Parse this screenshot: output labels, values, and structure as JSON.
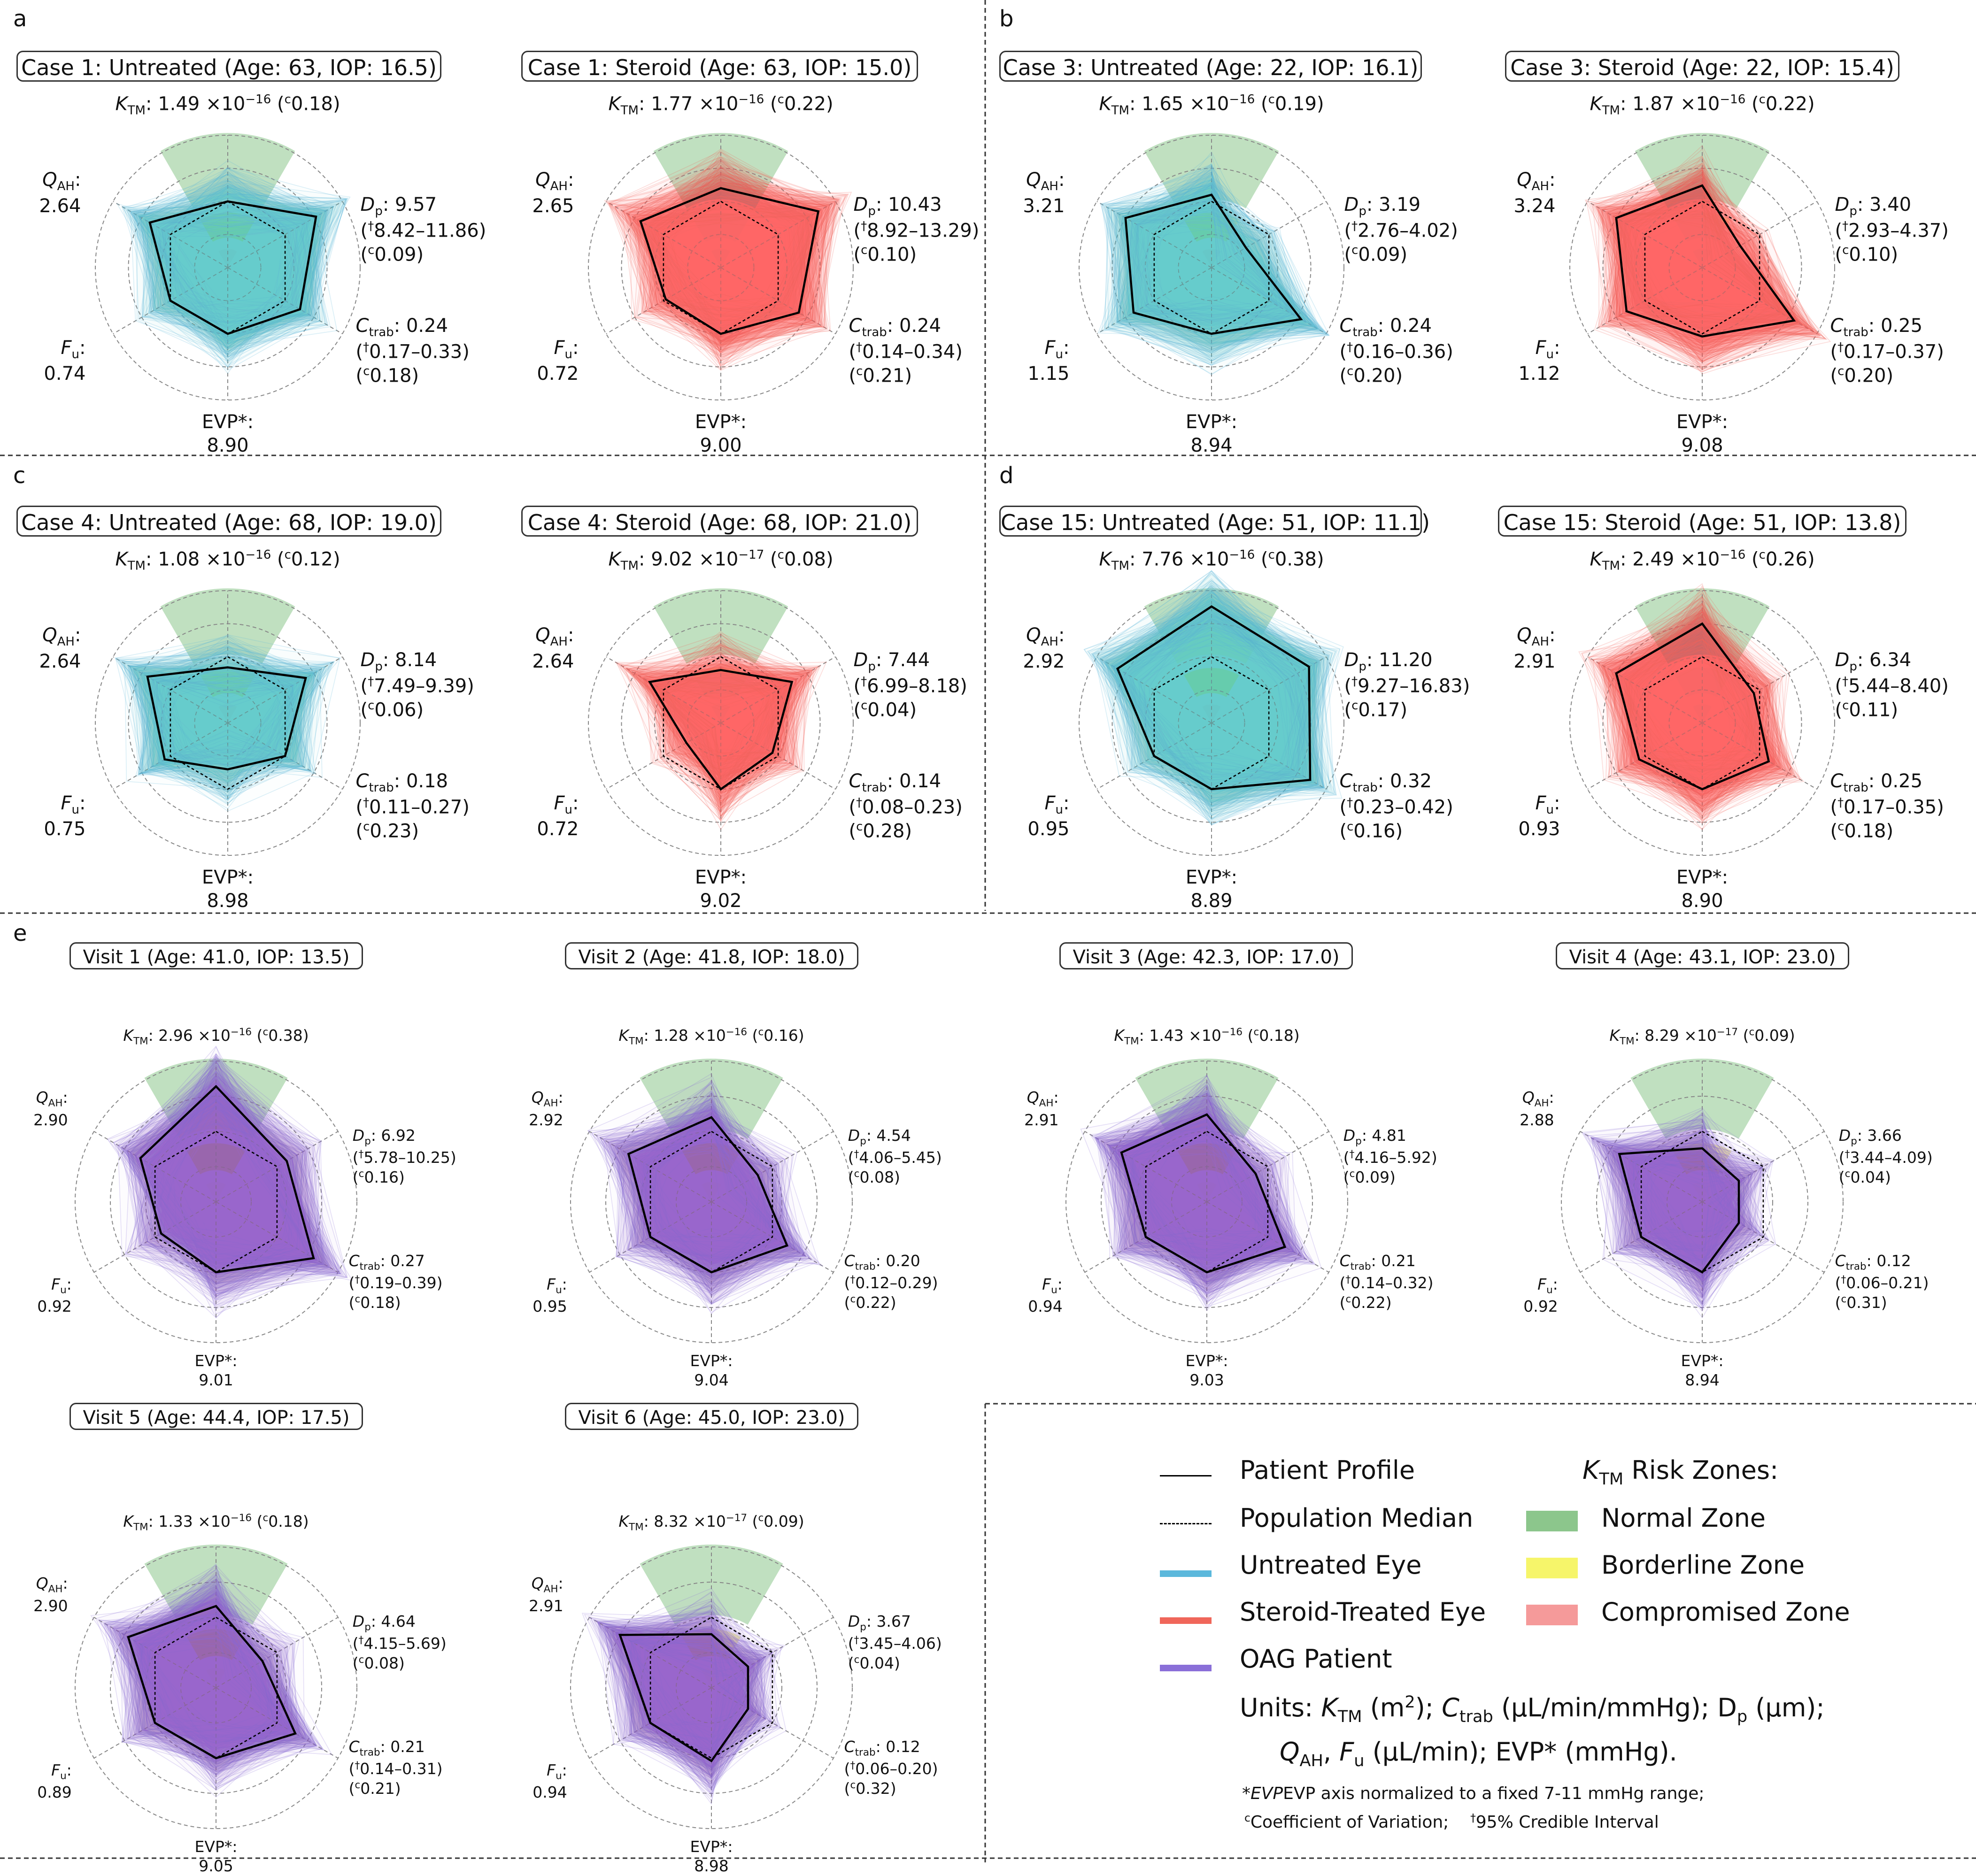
{
  "panels": [
    {
      "id": "a-1",
      "letter": "a",
      "title": "Case 1: Untreated (Age: 63, IOP: 16.5)",
      "group": "untreated",
      "k": "1.49",
      "kexp": "−16",
      "kcv": "0.18",
      "dp": "9.57",
      "dpci": "8.42–11.86",
      "dpcv": "0.09",
      "ctrab": "0.24",
      "ctrabci": "0.17–0.33",
      "ctrabcv": "0.18",
      "evp": "8.90",
      "fu": "0.74",
      "qah": "2.64",
      "patient": [
        0.5,
        0.77,
        0.63,
        0.5,
        0.5,
        0.68
      ]
    },
    {
      "id": "a-2",
      "letter": "",
      "title": "Case 1: Steroid (Age: 63, IOP: 15.0)",
      "group": "steroid",
      "k": "1.77",
      "kexp": "−16",
      "kcv": "0.22",
      "dp": "10.43",
      "dpci": "8.92–13.29",
      "dpcv": "0.10",
      "ctrab": "0.24",
      "ctrabci": "0.14–0.34",
      "ctrabcv": "0.21",
      "evp": "9.00",
      "fu": "0.72",
      "qah": "2.65",
      "patient": [
        0.6,
        0.85,
        0.68,
        0.5,
        0.48,
        0.7
      ]
    },
    {
      "id": "b-1",
      "letter": "b",
      "title": "Case 3: Untreated (Age: 22, IOP: 16.1)",
      "group": "untreated",
      "k": "1.65",
      "kexp": "−16",
      "kcv": "0.19",
      "dp": "3.19",
      "dpci": "2.76–4.02",
      "dpcv": "0.09",
      "ctrab": "0.24",
      "ctrabci": "0.16–0.36",
      "ctrabcv": "0.20",
      "evp": "8.94",
      "fu": "1.15",
      "qah": "3.21",
      "patient": [
        0.55,
        0.3,
        0.78,
        0.5,
        0.68,
        0.75
      ]
    },
    {
      "id": "b-2",
      "letter": "",
      "title": "Case 3: Steroid (Age: 22, IOP: 15.4)",
      "group": "steroid",
      "k": "1.87",
      "kexp": "−16",
      "kcv": "0.22",
      "dp": "3.40",
      "dpci": "2.93–4.37",
      "dpcv": "0.10",
      "ctrab": "0.25",
      "ctrabci": "0.17–0.37",
      "ctrabcv": "0.20",
      "evp": "9.08",
      "fu": "1.12",
      "qah": "3.24",
      "patient": [
        0.62,
        0.33,
        0.8,
        0.52,
        0.66,
        0.75
      ]
    },
    {
      "id": "c-1",
      "letter": "c",
      "title": "Case 4: Untreated (Age: 68, IOP: 19.0)",
      "group": "untreated",
      "k": "1.08",
      "kexp": "−16",
      "kcv": "0.12",
      "dp": "8.14",
      "dpci": "7.49–9.39",
      "dpcv": "0.06",
      "ctrab": "0.18",
      "ctrabci": "0.11–0.27",
      "ctrabcv": "0.23",
      "evp": "8.98",
      "fu": "0.75",
      "qah": "2.64",
      "patient": [
        0.42,
        0.68,
        0.5,
        0.35,
        0.55,
        0.7
      ]
    },
    {
      "id": "c-2",
      "letter": "",
      "title": "Case 4: Steroid (Age: 68, IOP: 21.0)",
      "group": "steroid",
      "k": "9.02",
      "kexp": "−17",
      "kcv": "0.08",
      "dp": "7.44",
      "dpci": "6.99–8.18",
      "dpcv": "0.04",
      "ctrab": "0.14",
      "ctrabci": "0.08–0.23",
      "ctrabcv": "0.28",
      "evp": "9.02",
      "fu": "0.72",
      "qah": "2.64",
      "patient": [
        0.4,
        0.62,
        0.45,
        0.5,
        0.3,
        0.62
      ]
    },
    {
      "id": "d-1",
      "letter": "d",
      "title": "Case 15: Untreated (Age: 51, IOP: 11.1)",
      "group": "untreated",
      "k": "7.76",
      "kexp": "−16",
      "kcv": "0.38",
      "dp": "11.20",
      "dpci": "9.27–16.83",
      "dpcv": "0.17",
      "ctrab": "0.32",
      "ctrabci": "0.23–0.42",
      "ctrabcv": "0.16",
      "evp": "8.89",
      "fu": "0.95",
      "qah": "2.92",
      "patient": [
        0.88,
        0.85,
        0.86,
        0.5,
        0.5,
        0.82
      ]
    },
    {
      "id": "d-2",
      "letter": "",
      "title": "Case 15: Steroid (Age: 51, IOP: 13.8)",
      "group": "steroid",
      "k": "2.49",
      "kexp": "−16",
      "kcv": "0.26",
      "dp": "6.34",
      "dpci": "5.44–8.40",
      "dpcv": "0.11",
      "ctrab": "0.25",
      "ctrabci": "0.17–0.35",
      "ctrabcv": "0.18",
      "evp": "8.90",
      "fu": "0.93",
      "qah": "2.91",
      "patient": [
        0.75,
        0.45,
        0.58,
        0.5,
        0.55,
        0.75
      ]
    },
    {
      "id": "e-1",
      "letter": "e",
      "title": "Visit 1 (Age: 41.0, IOP: 13.5)",
      "group": "oag",
      "k": "2.96",
      "kexp": "−16",
      "kcv": "0.38",
      "dp": "6.92",
      "dpci": "5.78–10.25",
      "dpcv": "0.16",
      "ctrab": "0.27",
      "ctrabci": "0.19–0.39",
      "ctrabcv": "0.18",
      "evp": "9.01",
      "fu": "0.92",
      "qah": "2.90",
      "patient": [
        0.82,
        0.58,
        0.8,
        0.5,
        0.45,
        0.62
      ]
    },
    {
      "id": "e-2",
      "letter": "",
      "title": "Visit 2 (Age: 41.8, IOP: 18.0)",
      "group": "oag",
      "k": "1.28",
      "kexp": "−16",
      "kcv": "0.16",
      "dp": "4.54",
      "dpci": "4.06–5.45",
      "dpcv": "0.08",
      "ctrab": "0.20",
      "ctrabci": "0.12–0.29",
      "ctrabcv": "0.22",
      "evp": "9.04",
      "fu": "0.95",
      "qah": "2.92",
      "patient": [
        0.6,
        0.38,
        0.62,
        0.5,
        0.5,
        0.68
      ]
    },
    {
      "id": "e-3",
      "letter": "",
      "title": "Visit 3 (Age: 42.3, IOP: 17.0)",
      "group": "oag",
      "k": "1.43",
      "kexp": "−16",
      "kcv": "0.18",
      "dp": "4.81",
      "dpci": "4.16–5.92",
      "dpcv": "0.09",
      "ctrab": "0.21",
      "ctrabci": "0.14–0.32",
      "ctrabcv": "0.22",
      "evp": "9.03",
      "fu": "0.94",
      "qah": "2.91",
      "patient": [
        0.62,
        0.4,
        0.64,
        0.5,
        0.5,
        0.7
      ]
    },
    {
      "id": "e-4",
      "letter": "",
      "title": "Visit 4 (Age: 43.1, IOP: 23.0)",
      "group": "oag",
      "k": "8.29",
      "kexp": "−17",
      "kcv": "0.09",
      "dp": "3.66",
      "dpci": "3.44–4.09",
      "dpcv": "0.04",
      "ctrab": "0.12",
      "ctrabci": "0.06–0.21",
      "ctrabcv": "0.31",
      "evp": "8.94",
      "fu": "0.92",
      "qah": "2.88",
      "patient": [
        0.38,
        0.3,
        0.3,
        0.5,
        0.5,
        0.68
      ]
    },
    {
      "id": "e-5",
      "letter": "",
      "title": "Visit 5 (Age: 44.4, IOP: 17.5)",
      "group": "oag",
      "k": "1.33",
      "kexp": "−16",
      "kcv": "0.18",
      "dp": "4.64",
      "dpci": "4.15–5.69",
      "dpcv": "0.08",
      "ctrab": "0.21",
      "ctrabci": "0.14–0.31",
      "ctrabcv": "0.21",
      "evp": "9.05",
      "fu": "0.89",
      "qah": "2.90",
      "patient": [
        0.58,
        0.38,
        0.65,
        0.5,
        0.5,
        0.72
      ]
    },
    {
      "id": "e-6",
      "letter": "",
      "title": "Visit 6 (Age: 45.0, IOP: 23.0)",
      "group": "oag",
      "k": "8.32",
      "kexp": "−17",
      "kcv": "0.09",
      "dp": "3.67",
      "dpci": "3.45–4.06",
      "dpcv": "0.04",
      "ctrab": "0.12",
      "ctrabci": "0.06–0.20",
      "ctrabcv": "0.32",
      "evp": "8.98",
      "fu": "0.94",
      "qah": "2.91",
      "patient": [
        0.38,
        0.3,
        0.3,
        0.52,
        0.5,
        0.75
      ]
    }
  ],
  "labels": {
    "k_prefix": "K",
    "k_sub": "TM",
    "times": "×10",
    "cv_sym": "c",
    "ci_sym": "†",
    "dp_prefix": "D",
    "dp_sub": "p",
    "ctrab_prefix": "C",
    "ctrab_sub": "trab",
    "evp": "EVP*:",
    "fu_prefix": "F",
    "fu_sub": "u",
    "qah_prefix": "Q",
    "qah_sub": "AH"
  },
  "legend": {
    "patient_profile": "Patient Profile",
    "population_median": "Population Median",
    "untreated_eye": "Untreated Eye",
    "steroid_eye": "Steroid-Treated Eye",
    "oag_patient": "OAG Patient",
    "zones_title_prefix": "K",
    "zones_title_sub": "TM",
    "zones_title_suffix": " Risk Zones:",
    "normal_zone": "Normal Zone",
    "borderline_zone": "Borderline Zone",
    "compromised_zone": "Compromised Zone",
    "units_line1_a": "Units: ",
    "units_line1_b": " (m",
    "units_line1_c": ");  ",
    "units_line1_d": " (µL/min/mmHg);  D",
    "units_line1_e": " (µm);",
    "units_line2_a": ", ",
    "units_line2_b": " (µL/min);  EVP* (mmHg).",
    "foot1": "EVP axis normalized to a fixed 7-11 mmHg range;",
    "foot1_star": "*",
    "foot2_cv": "Coefficient of Variation;",
    "foot2_ci": "95% Credible Interval"
  },
  "colors": {
    "untreated": "#5bb8dc",
    "steroid": "#f0665a",
    "oag": "#8a6fd8",
    "normal": "#8cc68c",
    "borderline": "#f6f56a",
    "compromised": "#f59a9a",
    "patient": "#000000",
    "median": "#000000"
  }
}
